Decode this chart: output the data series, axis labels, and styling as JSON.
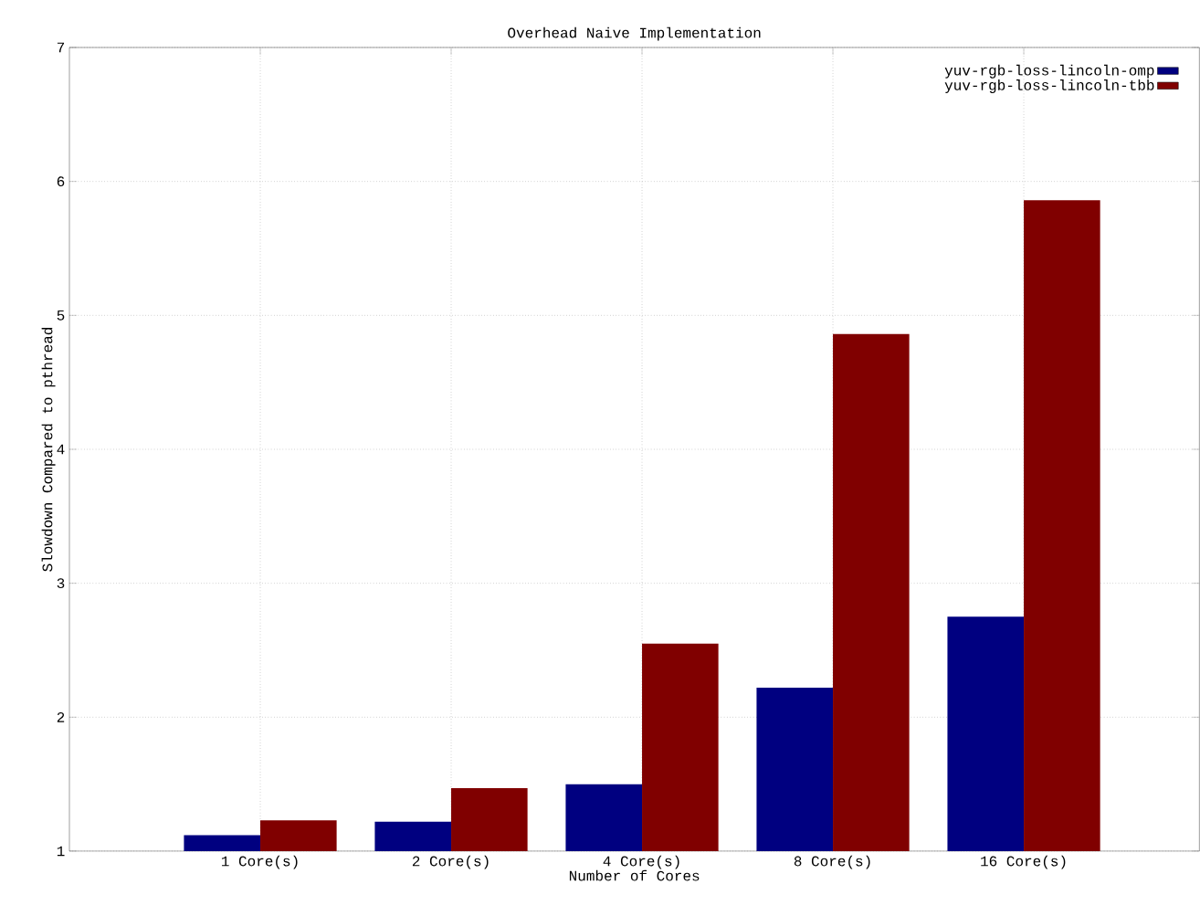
{
  "chart_data": {
    "type": "bar",
    "title": "Overhead Naive Implementation",
    "xlabel": "Number of Cores",
    "ylabel": "Slowdown Compared to pthread",
    "categories": [
      "1 Core(s)",
      "2 Core(s)",
      "4 Core(s)",
      "8 Core(s)",
      "16 Core(s)"
    ],
    "series": [
      {
        "name": "yuv-rgb-loss-lincoln-omp",
        "color": "#000080",
        "values": [
          1.12,
          1.22,
          1.5,
          2.22,
          2.75
        ]
      },
      {
        "name": "yuv-rgb-loss-lincoln-tbb",
        "color": "#800000",
        "values": [
          1.23,
          1.47,
          2.55,
          4.86,
          5.86
        ]
      }
    ],
    "ylim": [
      1,
      7
    ],
    "yticks": [
      1,
      2,
      3,
      4,
      5,
      6,
      7
    ],
    "grid": true,
    "legend": "top right"
  }
}
